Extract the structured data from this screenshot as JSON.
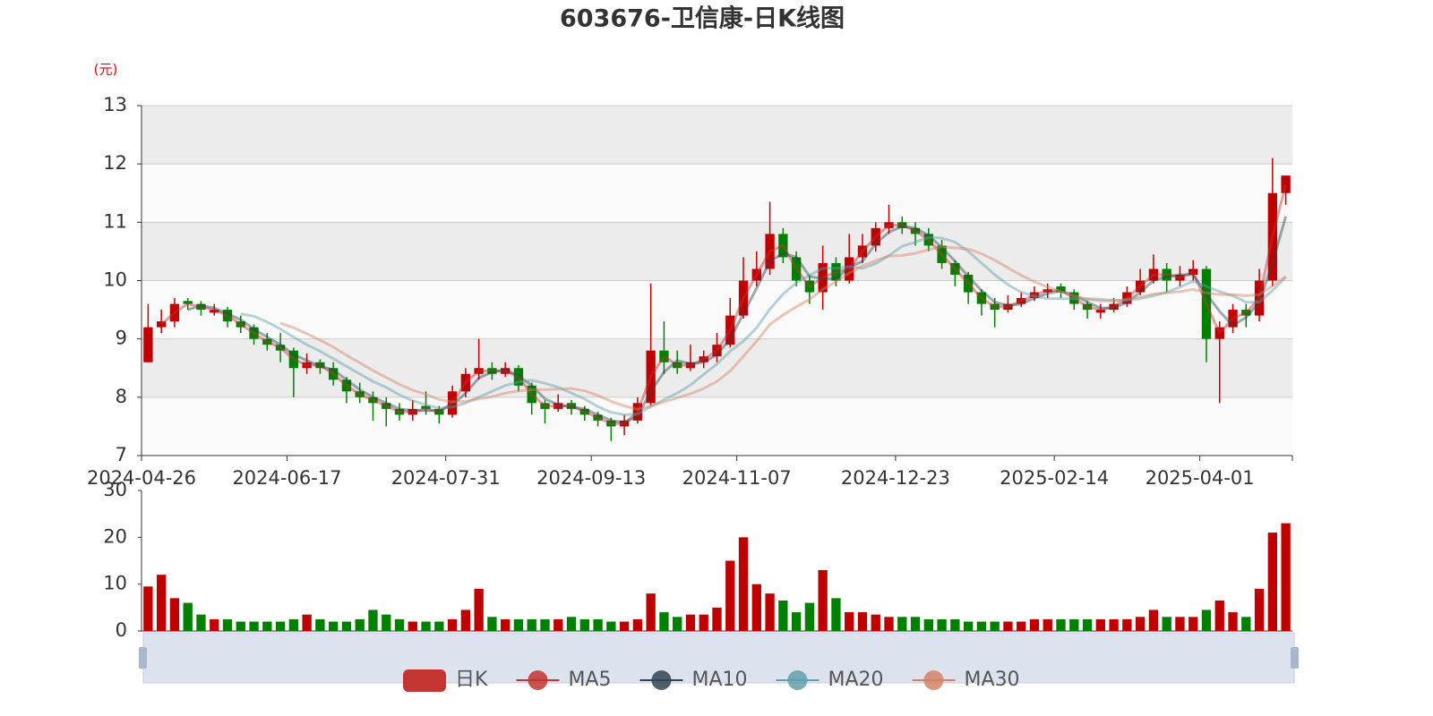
{
  "chart_data": {
    "type": "candlestick",
    "title": "603676-卫信康-日K线图",
    "ylabel": "(元)",
    "ylim": [
      7,
      13
    ],
    "yticks": [
      7,
      8,
      9,
      10,
      11,
      12,
      13
    ],
    "grid": true,
    "legend": "bottom",
    "up_color": "#c00000",
    "down_color": "#008000",
    "categories": [
      "2024-04-26",
      null,
      null,
      null,
      null,
      null,
      null,
      null,
      null,
      null,
      null,
      "2024-06-17",
      null,
      null,
      null,
      null,
      null,
      null,
      null,
      null,
      null,
      null,
      null,
      "2024-07-31",
      null,
      null,
      null,
      null,
      null,
      null,
      null,
      null,
      null,
      null,
      "2024-09-13",
      null,
      null,
      null,
      null,
      null,
      null,
      null,
      null,
      null,
      null,
      "2024-11-07",
      null,
      null,
      null,
      null,
      null,
      null,
      null,
      null,
      null,
      null,
      null,
      "2024-12-23",
      null,
      null,
      null,
      null,
      null,
      null,
      null,
      null,
      null,
      null,
      null,
      "2025-02-14",
      null,
      null,
      null,
      null,
      null,
      null,
      null,
      null,
      null,
      null,
      "2025-04-01",
      null,
      null,
      null,
      null,
      null,
      null
    ],
    "series": [
      {
        "name": "日K",
        "type": "candlestick",
        "color": "#c23531",
        "values": [
          [
            8.6,
            9.2,
            8.6,
            9.6
          ],
          [
            9.2,
            9.3,
            9.1,
            9.5
          ],
          [
            9.3,
            9.6,
            9.2,
            9.7
          ],
          [
            9.65,
            9.6,
            9.5,
            9.7
          ],
          [
            9.6,
            9.5,
            9.4,
            9.65
          ],
          [
            9.45,
            9.5,
            9.4,
            9.6
          ],
          [
            9.5,
            9.3,
            9.2,
            9.55
          ],
          [
            9.3,
            9.2,
            9.1,
            9.4
          ],
          [
            9.2,
            9.0,
            8.9,
            9.25
          ],
          [
            9.0,
            8.9,
            8.8,
            9.1
          ],
          [
            8.9,
            8.8,
            8.6,
            9.1
          ],
          [
            8.8,
            8.5,
            8.0,
            8.85
          ],
          [
            8.5,
            8.6,
            8.4,
            8.75
          ],
          [
            8.6,
            8.5,
            8.4,
            8.65
          ],
          [
            8.5,
            8.3,
            8.2,
            8.6
          ],
          [
            8.3,
            8.1,
            7.9,
            8.35
          ],
          [
            8.1,
            8.0,
            7.9,
            8.25
          ],
          [
            8.0,
            7.9,
            7.6,
            8.1
          ],
          [
            7.9,
            7.8,
            7.5,
            8.0
          ],
          [
            7.8,
            7.7,
            7.6,
            7.9
          ],
          [
            7.7,
            7.8,
            7.6,
            7.95
          ],
          [
            7.85,
            7.8,
            7.7,
            8.1
          ],
          [
            7.8,
            7.7,
            7.55,
            7.85
          ],
          [
            7.7,
            8.1,
            7.65,
            8.2
          ],
          [
            8.1,
            8.4,
            8.0,
            8.5
          ],
          [
            8.4,
            8.5,
            8.3,
            9.0
          ],
          [
            8.5,
            8.4,
            8.3,
            8.6
          ],
          [
            8.4,
            8.5,
            8.35,
            8.6
          ],
          [
            8.5,
            8.2,
            8.1,
            8.55
          ],
          [
            8.2,
            7.9,
            7.7,
            8.25
          ],
          [
            7.9,
            7.8,
            7.55,
            7.95
          ],
          [
            7.8,
            7.9,
            7.75,
            8.05
          ],
          [
            7.9,
            7.8,
            7.7,
            7.95
          ],
          [
            7.8,
            7.7,
            7.6,
            7.85
          ],
          [
            7.7,
            7.6,
            7.5,
            7.75
          ],
          [
            7.6,
            7.5,
            7.25,
            7.65
          ],
          [
            7.5,
            7.6,
            7.35,
            7.7
          ],
          [
            7.6,
            7.9,
            7.55,
            8.0
          ],
          [
            7.9,
            8.8,
            7.85,
            9.95
          ],
          [
            8.8,
            8.6,
            8.4,
            9.3
          ],
          [
            8.6,
            8.5,
            8.4,
            8.8
          ],
          [
            8.5,
            8.6,
            8.45,
            8.9
          ],
          [
            8.6,
            8.7,
            8.5,
            8.8
          ],
          [
            8.7,
            8.9,
            8.6,
            9.1
          ],
          [
            8.9,
            9.4,
            8.85,
            9.7
          ],
          [
            9.4,
            10.0,
            9.35,
            10.4
          ],
          [
            10.0,
            10.2,
            9.9,
            10.5
          ],
          [
            10.2,
            10.8,
            10.1,
            11.35
          ],
          [
            10.8,
            10.4,
            10.3,
            10.9
          ],
          [
            10.4,
            10.0,
            9.9,
            10.5
          ],
          [
            10.0,
            9.8,
            9.6,
            10.1
          ],
          [
            9.8,
            10.3,
            9.5,
            10.6
          ],
          [
            10.3,
            10.0,
            9.9,
            10.4
          ],
          [
            10.0,
            10.4,
            9.95,
            10.8
          ],
          [
            10.4,
            10.6,
            10.3,
            10.8
          ],
          [
            10.6,
            10.9,
            10.5,
            11.0
          ],
          [
            10.9,
            11.0,
            10.8,
            11.3
          ],
          [
            11.0,
            10.9,
            10.8,
            11.1
          ],
          [
            10.9,
            10.8,
            10.6,
            11.0
          ],
          [
            10.8,
            10.6,
            10.5,
            10.9
          ],
          [
            10.6,
            10.3,
            10.2,
            10.7
          ],
          [
            10.3,
            10.1,
            9.9,
            10.35
          ],
          [
            10.1,
            9.8,
            9.6,
            10.15
          ],
          [
            9.8,
            9.6,
            9.4,
            9.85
          ],
          [
            9.6,
            9.5,
            9.2,
            9.7
          ],
          [
            9.5,
            9.6,
            9.45,
            9.75
          ],
          [
            9.6,
            9.7,
            9.55,
            9.8
          ],
          [
            9.7,
            9.8,
            9.65,
            9.9
          ],
          [
            9.8,
            9.85,
            9.7,
            9.95
          ],
          [
            9.9,
            9.8,
            9.7,
            9.95
          ],
          [
            9.8,
            9.6,
            9.5,
            9.85
          ],
          [
            9.6,
            9.5,
            9.35,
            9.65
          ],
          [
            9.45,
            9.5,
            9.35,
            9.6
          ],
          [
            9.5,
            9.6,
            9.45,
            9.7
          ],
          [
            9.6,
            9.8,
            9.55,
            9.9
          ],
          [
            9.8,
            10.0,
            9.75,
            10.2
          ],
          [
            10.0,
            10.2,
            9.95,
            10.45
          ],
          [
            10.2,
            10.0,
            9.8,
            10.3
          ],
          [
            10.0,
            10.1,
            9.9,
            10.25
          ],
          [
            10.1,
            10.2,
            10.0,
            10.35
          ],
          [
            10.2,
            9.0,
            8.6,
            10.25
          ],
          [
            9.0,
            9.2,
            7.9,
            9.3
          ],
          [
            9.2,
            9.5,
            9.1,
            9.6
          ],
          [
            9.5,
            9.4,
            9.2,
            9.6
          ],
          [
            9.4,
            10.0,
            9.3,
            10.2
          ],
          [
            10.0,
            11.5,
            9.9,
            12.1
          ],
          [
            11.5,
            11.8,
            11.3,
            11.8
          ]
        ]
      },
      {
        "name": "MA5",
        "type": "line",
        "color": "#c23531",
        "values": [
          null,
          9.25,
          9.45,
          9.6,
          9.55,
          9.5,
          9.4,
          9.25,
          9.1,
          8.95,
          8.85,
          8.65,
          8.55,
          8.55,
          8.4,
          8.2,
          8.05,
          7.95,
          7.85,
          7.75,
          7.75,
          7.8,
          7.75,
          7.9,
          8.25,
          8.45,
          8.45,
          8.45,
          8.35,
          8.05,
          7.85,
          7.85,
          7.85,
          7.75,
          7.65,
          7.55,
          7.55,
          7.75,
          8.35,
          8.7,
          8.55,
          8.55,
          8.65,
          8.8,
          9.15,
          9.7,
          10.1,
          10.5,
          10.6,
          10.2,
          9.9,
          10.05,
          10.15,
          10.2,
          10.5,
          10.75,
          10.95,
          10.95,
          10.85,
          10.7,
          10.45,
          10.2,
          9.95,
          9.7,
          9.55,
          9.55,
          9.65,
          9.75,
          9.83,
          9.83,
          9.7,
          9.55,
          9.5,
          9.55,
          9.7,
          9.9,
          10.1,
          10.1,
          10.05,
          10.15,
          9.6,
          9.1,
          9.35,
          9.45,
          9.7,
          10.75,
          11.65
        ]
      },
      {
        "name": "MA10",
        "type": "line",
        "color": "#2f4554",
        "values": [
          null,
          null,
          null,
          9.5,
          9.57,
          9.53,
          9.43,
          9.33,
          9.17,
          9.03,
          8.9,
          8.73,
          8.63,
          8.53,
          8.47,
          8.3,
          8.13,
          8.0,
          7.9,
          7.8,
          7.77,
          7.77,
          7.77,
          7.87,
          8.07,
          8.33,
          8.43,
          8.47,
          8.37,
          8.2,
          7.97,
          7.87,
          7.83,
          7.8,
          7.7,
          7.6,
          7.57,
          7.67,
          8.1,
          8.43,
          8.63,
          8.57,
          8.6,
          8.73,
          9.0,
          9.43,
          9.87,
          10.33,
          10.47,
          10.4,
          10.07,
          10.03,
          10.03,
          10.23,
          10.33,
          10.63,
          10.83,
          10.93,
          10.9,
          10.77,
          10.57,
          10.33,
          10.07,
          9.83,
          9.63,
          9.57,
          9.6,
          9.7,
          9.78,
          9.82,
          9.75,
          9.63,
          9.53,
          9.53,
          9.63,
          9.8,
          10.0,
          10.07,
          10.1,
          10.1,
          9.77,
          9.47,
          9.23,
          9.37,
          9.63,
          10.3,
          11.1
        ]
      },
      {
        "name": "MA20",
        "type": "line",
        "color": "#61a0a8",
        "values": [
          null,
          null,
          null,
          null,
          null,
          null,
          null,
          9.43,
          9.39,
          9.29,
          9.17,
          9.03,
          8.9,
          8.79,
          8.66,
          8.53,
          8.4,
          8.27,
          8.17,
          8.04,
          7.94,
          7.87,
          7.81,
          7.83,
          7.9,
          8.0,
          8.1,
          8.2,
          8.26,
          8.29,
          8.24,
          8.17,
          8.07,
          7.97,
          7.84,
          7.74,
          7.7,
          7.71,
          7.84,
          7.96,
          8.07,
          8.21,
          8.39,
          8.57,
          8.79,
          8.96,
          9.19,
          9.51,
          9.77,
          9.96,
          10.09,
          10.21,
          10.21,
          10.24,
          10.21,
          10.29,
          10.43,
          10.59,
          10.66,
          10.74,
          10.73,
          10.66,
          10.5,
          10.3,
          10.1,
          9.93,
          9.8,
          9.73,
          9.69,
          9.69,
          9.69,
          9.69,
          9.68,
          9.66,
          9.66,
          9.69,
          9.74,
          9.8,
          9.89,
          9.99,
          9.9,
          9.81,
          9.74,
          9.63,
          9.63,
          9.83,
          10.06
        ]
      },
      {
        "name": "MA30",
        "type": "line",
        "color": "#d48265",
        "values": [
          null,
          null,
          null,
          null,
          null,
          null,
          null,
          null,
          null,
          null,
          9.27,
          9.19,
          9.09,
          8.98,
          8.86,
          8.72,
          8.59,
          8.46,
          8.34,
          8.22,
          8.12,
          8.05,
          7.96,
          7.92,
          7.93,
          7.97,
          8.01,
          8.07,
          8.11,
          8.13,
          8.13,
          8.14,
          8.15,
          8.11,
          8.03,
          7.93,
          7.85,
          7.79,
          7.85,
          7.92,
          7.99,
          8.06,
          8.15,
          8.27,
          8.45,
          8.7,
          8.96,
          9.25,
          9.41,
          9.55,
          9.68,
          9.85,
          9.98,
          10.13,
          10.25,
          10.34,
          10.42,
          10.43,
          10.47,
          10.53,
          10.58,
          10.56,
          10.54,
          10.46,
          10.35,
          10.22,
          10.09,
          9.98,
          9.89,
          9.81,
          9.74,
          9.68,
          9.65,
          9.65,
          9.68,
          9.72,
          9.77,
          9.79,
          9.81,
          9.85,
          9.79,
          9.76,
          9.76,
          9.74,
          9.76,
          9.91,
          10.07
        ]
      }
    ],
    "volume": {
      "ylim": [
        0,
        30
      ],
      "yticks": [
        0,
        10,
        20,
        30
      ],
      "values": [
        9.5,
        12,
        7,
        6,
        3.5,
        2.5,
        2.5,
        2,
        2,
        2,
        2,
        2.5,
        3.5,
        2.5,
        2,
        2,
        2.5,
        4.5,
        3.5,
        2.5,
        2,
        2,
        2,
        2.5,
        4.5,
        9,
        3,
        2.5,
        2.5,
        2.5,
        2.5,
        2.5,
        3,
        2.5,
        2.5,
        2,
        2,
        2.5,
        8,
        4,
        3,
        3.5,
        3.5,
        5,
        15,
        20,
        10,
        8,
        6.5,
        4,
        6,
        13,
        7,
        4,
        4,
        3.5,
        3,
        3,
        3,
        2.5,
        2.5,
        2.5,
        2,
        2,
        2,
        2,
        2,
        2.5,
        2.5,
        2.5,
        2.5,
        2.5,
        2.5,
        2.5,
        2.5,
        3,
        4.5,
        3,
        3,
        3,
        4.5,
        6.5,
        4,
        3,
        9,
        21,
        23
      ]
    }
  }
}
